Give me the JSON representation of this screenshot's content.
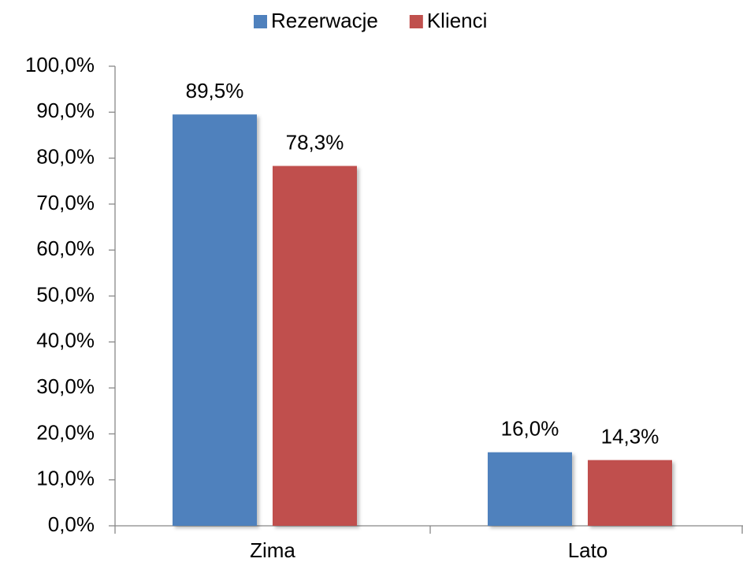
{
  "chart_data": {
    "type": "bar",
    "categories": [
      "Zima",
      "Lato"
    ],
    "series": [
      {
        "name": "Rezerwacje",
        "color": "#4f81bd",
        "values": [
          89.5,
          16.0
        ],
        "value_labels": [
          "89,5%",
          "16,0%"
        ]
      },
      {
        "name": "Klienci",
        "color": "#c0504d",
        "values": [
          78.3,
          14.3
        ],
        "value_labels": [
          "78,3%",
          "14,3%"
        ]
      }
    ],
    "ylim": [
      0,
      100
    ],
    "yticks": [
      {
        "value": 0,
        "label": "0,0%"
      },
      {
        "value": 10,
        "label": "10,0%"
      },
      {
        "value": 20,
        "label": "20,0%"
      },
      {
        "value": 30,
        "label": "30,0%"
      },
      {
        "value": 40,
        "label": "40,0%"
      },
      {
        "value": 50,
        "label": "50,0%"
      },
      {
        "value": 60,
        "label": "60,0%"
      },
      {
        "value": 70,
        "label": "70,0%"
      },
      {
        "value": 80,
        "label": "80,0%"
      },
      {
        "value": 90,
        "label": "90,0%"
      },
      {
        "value": 100,
        "label": "100,0%"
      }
    ],
    "legend": "top",
    "grid": false
  }
}
